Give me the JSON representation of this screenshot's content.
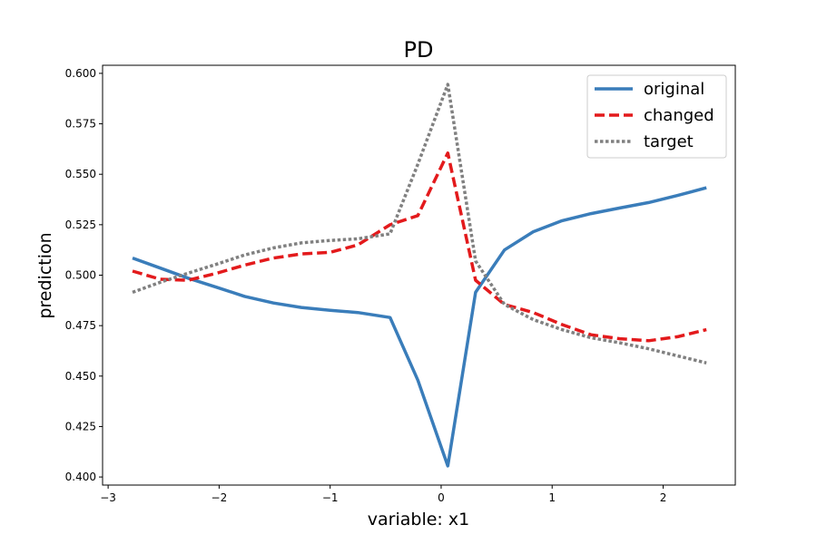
{
  "chart_data": {
    "type": "line",
    "title": "PD",
    "xlabel": "variable: x1",
    "ylabel": "prediction",
    "xlim": [
      -3.05,
      2.65
    ],
    "ylim": [
      0.396,
      0.604
    ],
    "xticks": [
      -3,
      -2,
      -1,
      0,
      1,
      2
    ],
    "xtick_labels": [
      "−3",
      "−2",
      "−1",
      "0",
      "1",
      "2"
    ],
    "yticks": [
      0.4,
      0.425,
      0.45,
      0.475,
      0.5,
      0.525,
      0.55,
      0.575,
      0.6
    ],
    "ytick_labels": [
      "0.400",
      "0.425",
      "0.450",
      "0.475",
      "0.500",
      "0.525",
      "0.550",
      "0.575",
      "0.600"
    ],
    "grid": false,
    "legend_position": "top-right",
    "x": [
      -2.78,
      -2.53,
      -2.28,
      -2.02,
      -1.77,
      -1.51,
      -1.26,
      -1.0,
      -0.75,
      -0.46,
      -0.21,
      0.06,
      0.31,
      0.57,
      0.83,
      1.09,
      1.35,
      1.61,
      1.87,
      2.13,
      2.39
    ],
    "series": [
      {
        "name": "original",
        "color": "#3a7dba",
        "dash": "solid",
        "values": [
          0.5085,
          0.5035,
          0.4985,
          0.494,
          0.4895,
          0.4862,
          0.484,
          0.4826,
          0.4815,
          0.479,
          0.448,
          0.4055,
          0.4915,
          0.5125,
          0.5215,
          0.527,
          0.5305,
          0.5333,
          0.536,
          0.5395,
          0.5433
        ]
      },
      {
        "name": "changed",
        "color": "#e31a1c",
        "dash": "dashed",
        "values": [
          0.502,
          0.498,
          0.4975,
          0.501,
          0.505,
          0.5085,
          0.5105,
          0.5113,
          0.515,
          0.525,
          0.5295,
          0.5605,
          0.4975,
          0.4855,
          0.4815,
          0.4755,
          0.4705,
          0.4685,
          0.4675,
          0.4695,
          0.473
        ]
      },
      {
        "name": "target",
        "color": "#808080",
        "dash": "dotted",
        "values": [
          0.4915,
          0.4965,
          0.501,
          0.5055,
          0.51,
          0.5135,
          0.516,
          0.5172,
          0.518,
          0.5205,
          0.555,
          0.5945,
          0.507,
          0.4855,
          0.478,
          0.473,
          0.469,
          0.4665,
          0.4635,
          0.46,
          0.4565
        ]
      }
    ]
  }
}
